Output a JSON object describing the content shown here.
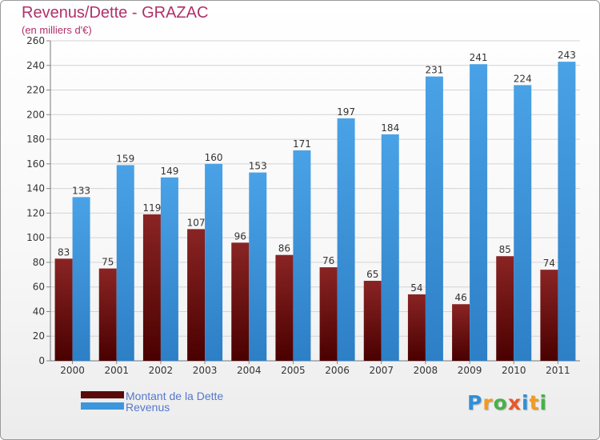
{
  "chart_data": {
    "type": "bar",
    "title": "Revenus/Dette - GRAZAC",
    "subtitle": "(en milliers d'€)",
    "categories": [
      "2000",
      "2001",
      "2002",
      "2003",
      "2004",
      "2005",
      "2006",
      "2007",
      "2008",
      "2009",
      "2010",
      "2011"
    ],
    "series": [
      {
        "name": "Montant de la Dette",
        "color": "#7a1515",
        "values": [
          83,
          75,
          119,
          107,
          96,
          86,
          76,
          65,
          54,
          46,
          85,
          74
        ]
      },
      {
        "name": "Revenus",
        "color": "#3d96dc",
        "values": [
          133,
          159,
          149,
          160,
          153,
          171,
          197,
          184,
          231,
          241,
          224,
          243
        ]
      }
    ],
    "ylim": [
      0,
      260
    ],
    "yticks": [
      0,
      20,
      40,
      60,
      80,
      100,
      120,
      140,
      160,
      180,
      200,
      220,
      240,
      260
    ],
    "grid": true,
    "legend_position": "bottom-left"
  },
  "legend": {
    "items": [
      {
        "label": "Montant de la Dette",
        "color": "#5a0a0a"
      },
      {
        "label": "Revenus",
        "color": "#3d96dc"
      }
    ]
  },
  "logo": {
    "letters": [
      "P",
      "r",
      "o",
      "x",
      "i",
      "t",
      "i"
    ],
    "colors": [
      "#2f8fd8",
      "#f39a1f",
      "#48b048",
      "#e8572b",
      "#2f8fd8",
      "#f39a1f",
      "#48b048"
    ]
  }
}
